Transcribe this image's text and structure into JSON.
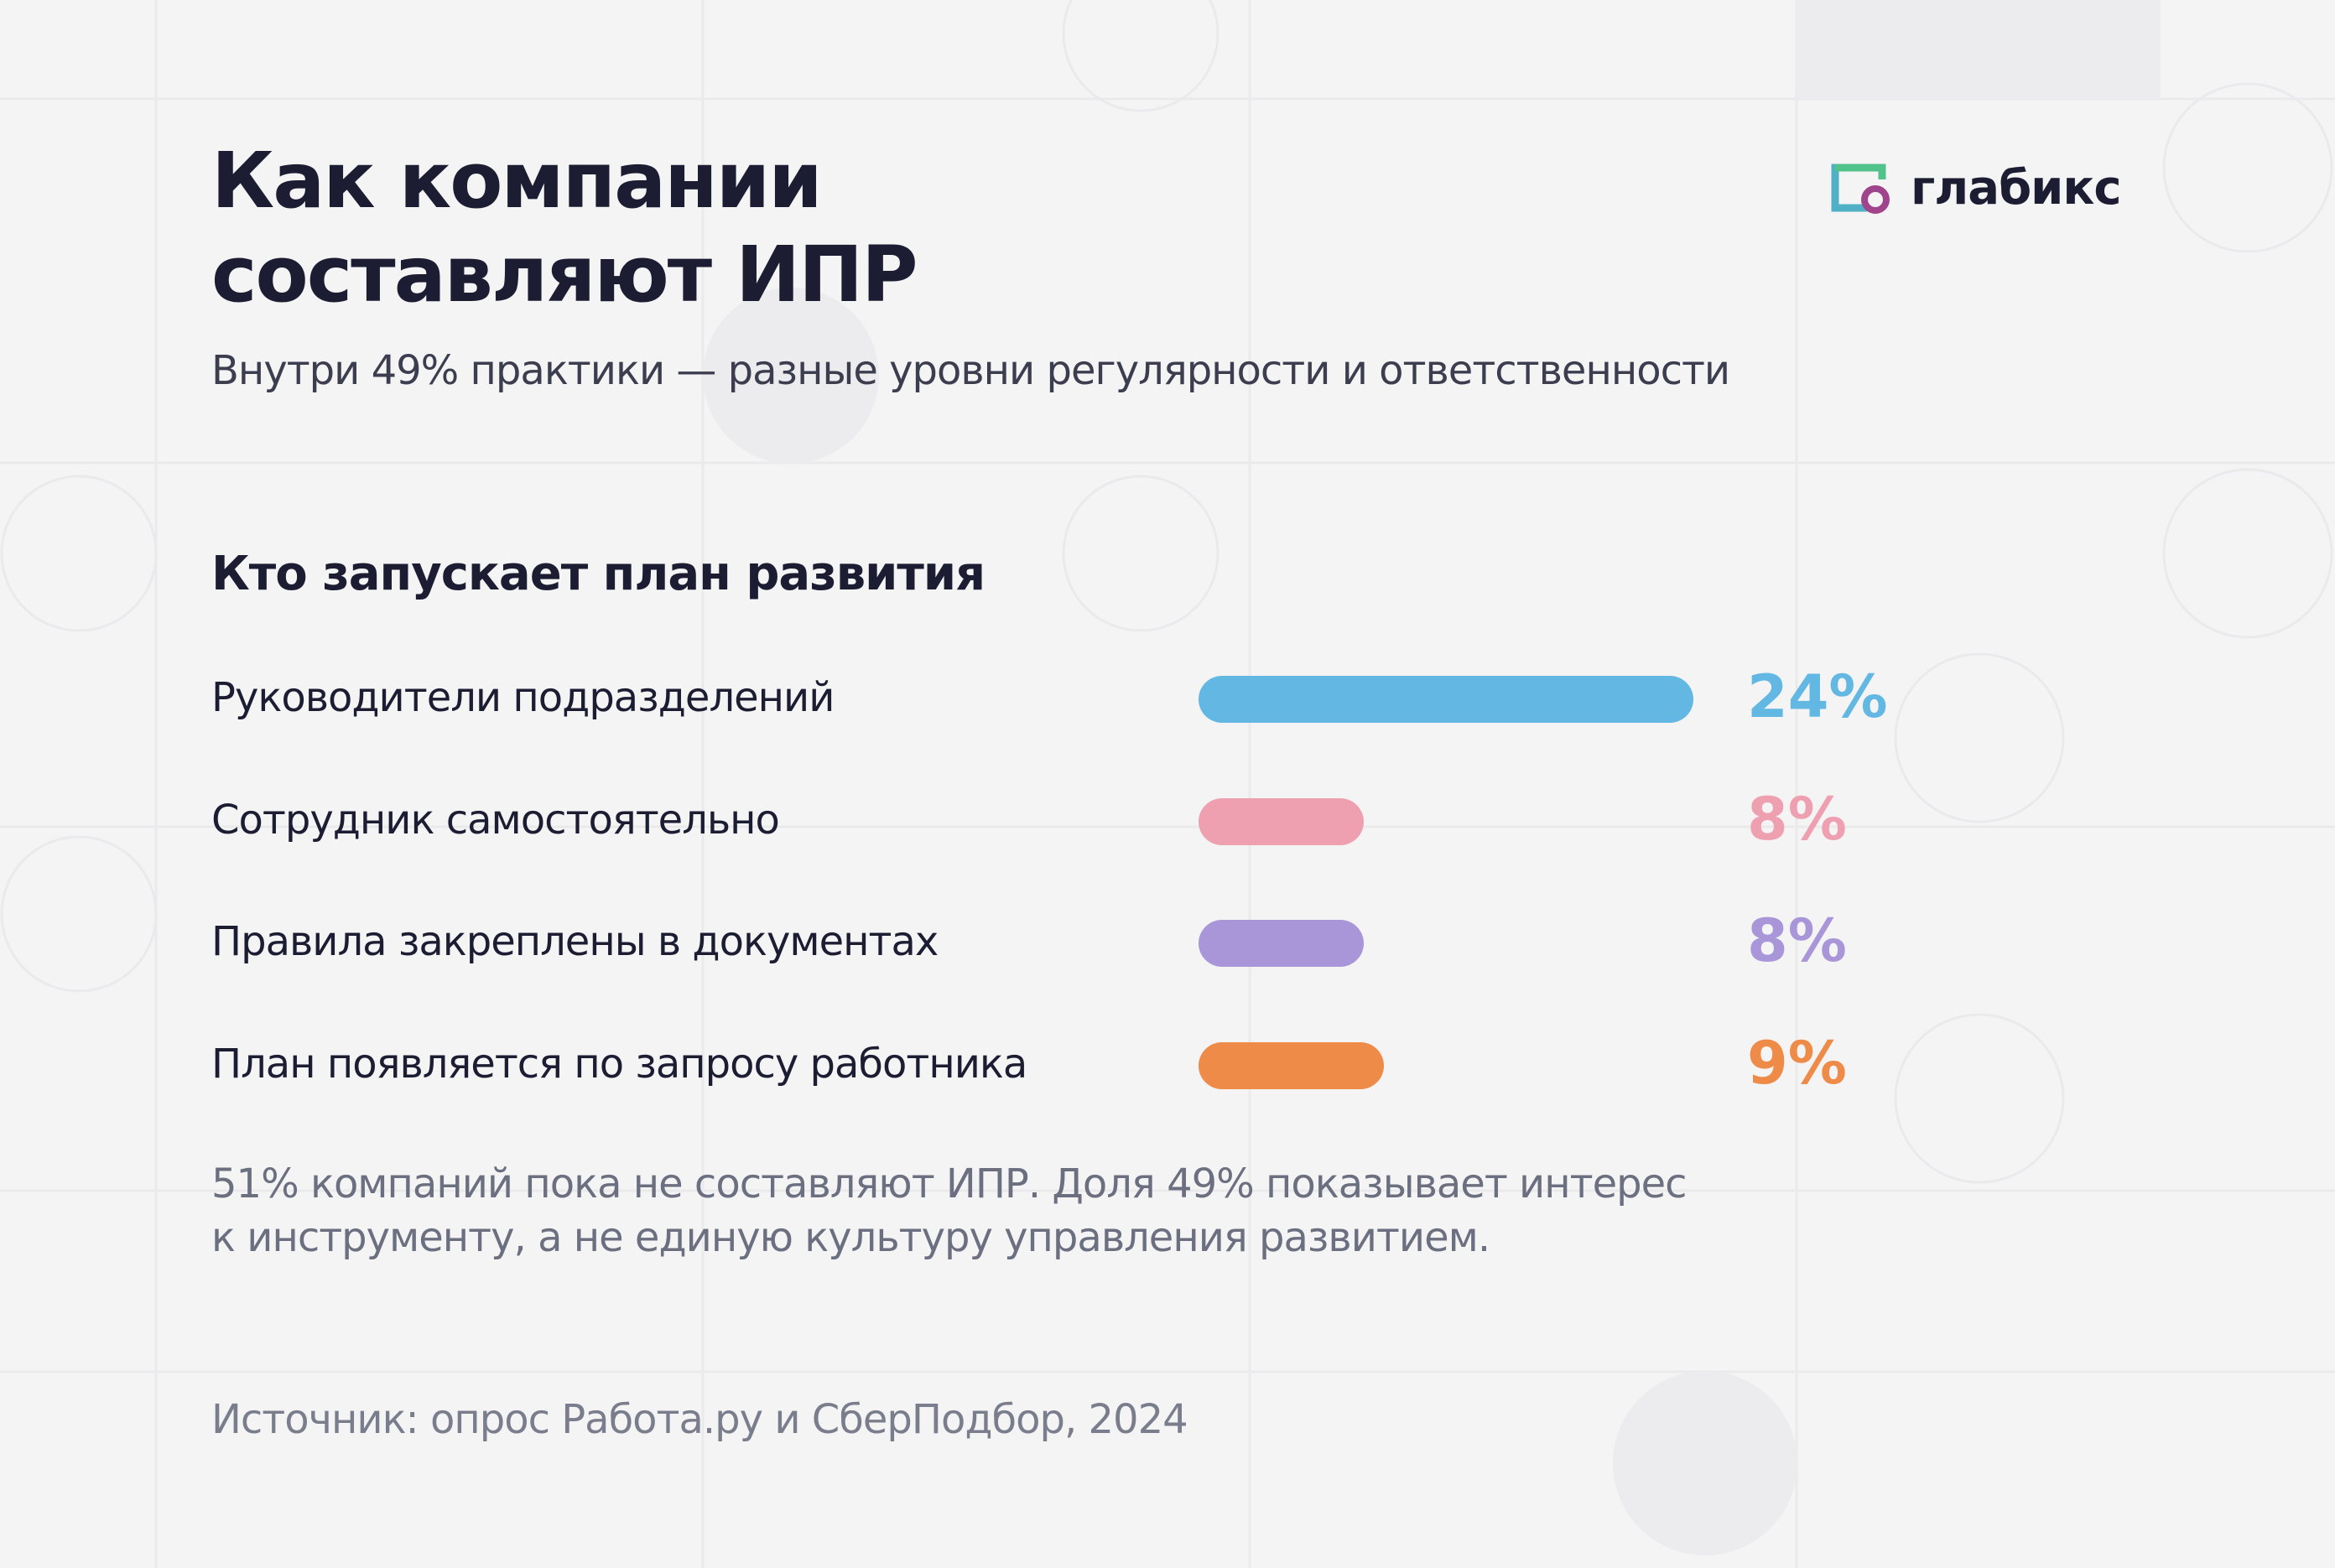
{
  "brand": "глабикс",
  "chart_data": {
    "type": "bar",
    "orientation": "horizontal",
    "title": "Как компании составляют ИПР",
    "subtitle": "Внутри 49% практики — разные уровни регулярности и ответственности",
    "section_title": "Кто запускает план развития",
    "categories": [
      "Руководители подразделений",
      "Сотрудник самостоятельно",
      "Правила закреплены в документах",
      "План появляется по запросу работника"
    ],
    "values": [
      24,
      8,
      8,
      9
    ],
    "value_labels": [
      "24%",
      "8%",
      "8%",
      "9%"
    ],
    "colors": [
      "#62b8e2",
      "#eea0b0",
      "#a996d8",
      "#ef8b48"
    ],
    "note": "51% компаний пока не составляют ИПР. Доля 49% показывает интерес к инструменту, а не единую культуру управления развитием.",
    "source": "Источник: опрос Работа.ру и СберПодбор, 2024"
  }
}
